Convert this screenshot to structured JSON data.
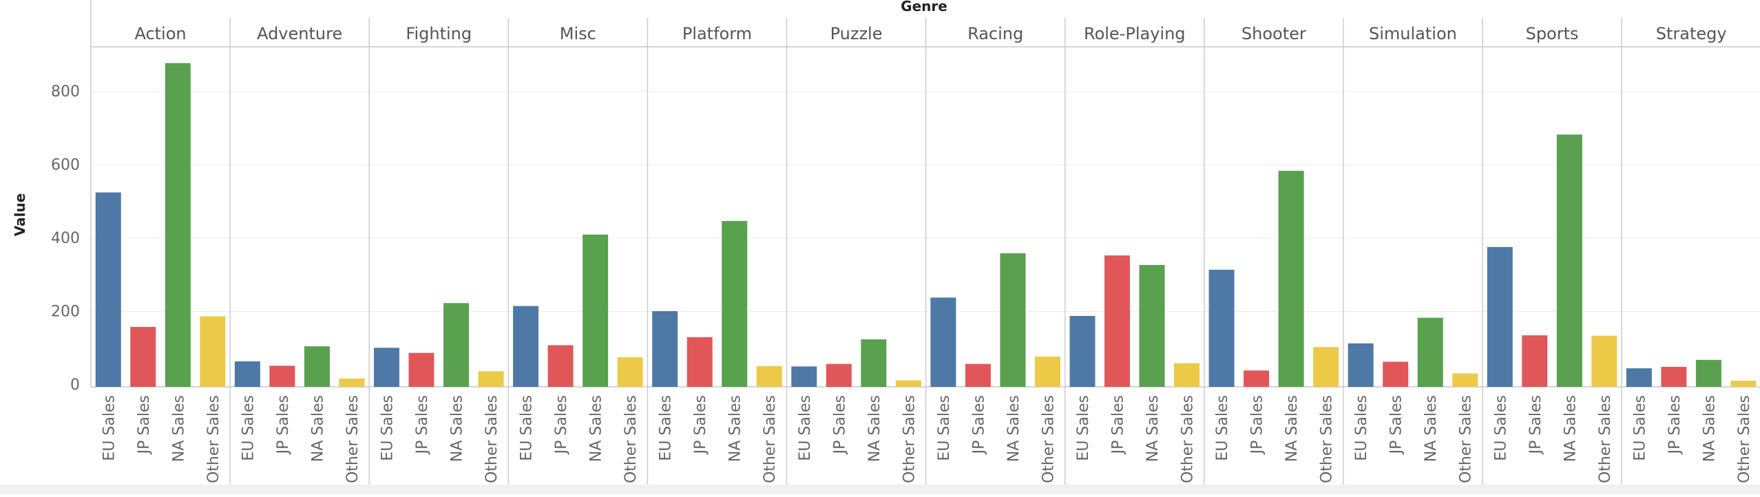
{
  "chart_data": {
    "type": "bar",
    "title": "Genre",
    "ylabel": "Value",
    "ylim": [
      0,
      1000
    ],
    "yticks": [
      0,
      200,
      400,
      600,
      800
    ],
    "grid": "horizontal",
    "legend": "none",
    "panels": [
      "Action",
      "Adventure",
      "Fighting",
      "Misc",
      "Platform",
      "Puzzle",
      "Racing",
      "Role-Playing",
      "Shooter",
      "Simulation",
      "Sports",
      "Strategy"
    ],
    "categories": [
      "EU Sales",
      "JP Sales",
      "NA Sales",
      "Other Sales"
    ],
    "colors": [
      "#4e79a7",
      "#e15759",
      "#59a14f",
      "#edc948"
    ],
    "values": [
      [
        525,
        158,
        878,
        187
      ],
      [
        64,
        52,
        105,
        17
      ],
      [
        101,
        87,
        223,
        37
      ],
      [
        215,
        108,
        410,
        75
      ],
      [
        201,
        130,
        447,
        51
      ],
      [
        50,
        57,
        124,
        12
      ],
      [
        238,
        57,
        359,
        77
      ],
      [
        188,
        353,
        327,
        59
      ],
      [
        314,
        39,
        584,
        103
      ],
      [
        113,
        63,
        183,
        31
      ],
      [
        376,
        135,
        683,
        134
      ],
      [
        45,
        49,
        68,
        11
      ]
    ]
  }
}
